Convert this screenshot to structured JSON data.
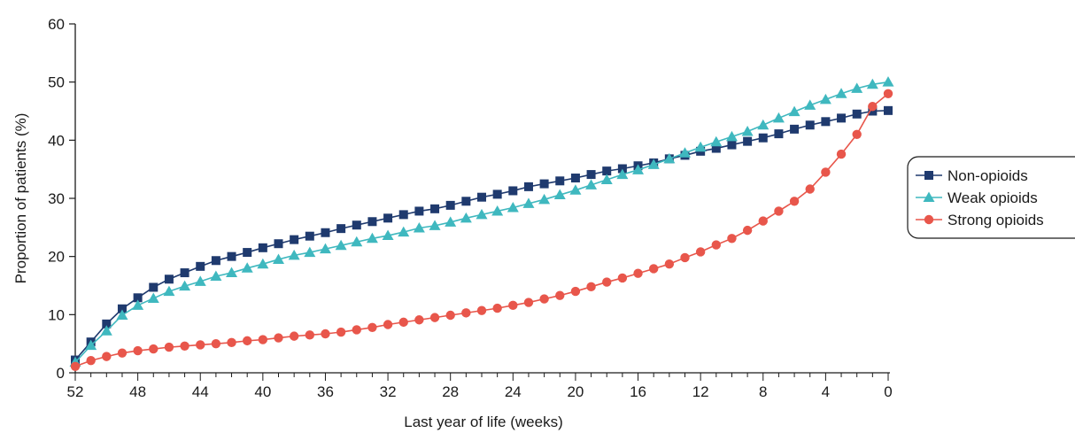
{
  "chart_data": {
    "type": "line",
    "title": "",
    "xlabel": "Last year of life (weeks)",
    "ylabel": "Proportion of patients (%)",
    "xlim": [
      52,
      0
    ],
    "ylim": [
      0,
      60
    ],
    "x_reversed": true,
    "x_ticks": [
      52,
      48,
      44,
      40,
      36,
      32,
      28,
      24,
      20,
      16,
      12,
      8,
      4,
      0
    ],
    "y_ticks": [
      0,
      10,
      20,
      30,
      40,
      50,
      60
    ],
    "grid": false,
    "legend_position": "right",
    "x": [
      52,
      51,
      50,
      49,
      48,
      47,
      46,
      45,
      44,
      43,
      42,
      41,
      40,
      39,
      38,
      37,
      36,
      35,
      34,
      33,
      32,
      31,
      30,
      29,
      28,
      27,
      26,
      25,
      24,
      23,
      22,
      21,
      20,
      19,
      18,
      17,
      16,
      15,
      14,
      13,
      12,
      11,
      10,
      9,
      8,
      7,
      6,
      5,
      4,
      3,
      2,
      1,
      0
    ],
    "series": [
      {
        "name": "Non-opioids",
        "color": "#1f3a6e",
        "marker": "square",
        "values": [
          2.2,
          5.3,
          8.4,
          11.0,
          12.9,
          14.7,
          16.1,
          17.2,
          18.3,
          19.3,
          20.0,
          20.7,
          21.5,
          22.2,
          22.9,
          23.5,
          24.1,
          24.8,
          25.4,
          26.0,
          26.6,
          27.2,
          27.8,
          28.2,
          28.8,
          29.5,
          30.2,
          30.7,
          31.3,
          32.0,
          32.5,
          33.0,
          33.5,
          34.1,
          34.7,
          35.1,
          35.6,
          36.1,
          36.8,
          37.4,
          38.1,
          38.6,
          39.2,
          39.8,
          40.4,
          41.1,
          41.9,
          42.6,
          43.2,
          43.8,
          44.5,
          45.0,
          45.1
        ]
      },
      {
        "name": "Weak opioids",
        "color": "#3fb8bf",
        "marker": "triangle",
        "values": [
          1.8,
          4.7,
          7.2,
          9.9,
          11.6,
          12.8,
          14.0,
          14.9,
          15.7,
          16.6,
          17.2,
          18.0,
          18.7,
          19.5,
          20.2,
          20.7,
          21.3,
          21.9,
          22.5,
          23.1,
          23.6,
          24.2,
          24.9,
          25.3,
          25.9,
          26.6,
          27.2,
          27.8,
          28.4,
          29.1,
          29.8,
          30.6,
          31.4,
          32.3,
          33.2,
          34.1,
          34.9,
          35.8,
          36.8,
          37.8,
          38.8,
          39.7,
          40.6,
          41.5,
          42.6,
          43.8,
          44.9,
          46.0,
          47.0,
          48.0,
          48.9,
          49.6,
          50.0
        ]
      },
      {
        "name": "Strong opioids",
        "color": "#e8564b",
        "marker": "circle",
        "values": [
          1.1,
          2.1,
          2.8,
          3.4,
          3.8,
          4.1,
          4.4,
          4.6,
          4.8,
          5.0,
          5.2,
          5.5,
          5.7,
          6.0,
          6.3,
          6.5,
          6.7,
          7.0,
          7.4,
          7.8,
          8.3,
          8.7,
          9.1,
          9.5,
          9.9,
          10.3,
          10.7,
          11.1,
          11.6,
          12.1,
          12.7,
          13.3,
          14.0,
          14.8,
          15.6,
          16.3,
          17.1,
          17.9,
          18.7,
          19.8,
          20.8,
          22.0,
          23.1,
          24.5,
          26.1,
          27.8,
          29.5,
          31.6,
          34.5,
          37.6,
          41.0,
          45.8,
          48.0
        ]
      }
    ]
  }
}
